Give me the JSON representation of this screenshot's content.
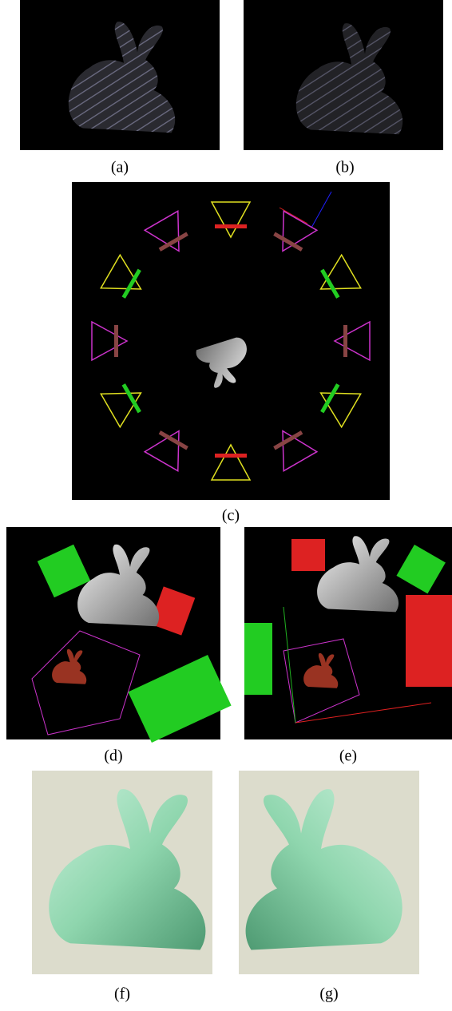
{
  "figure": {
    "captions": [
      "(a)",
      "(b)",
      "(c)",
      "(d)",
      "(e)",
      "(f)",
      "(g)"
    ]
  }
}
